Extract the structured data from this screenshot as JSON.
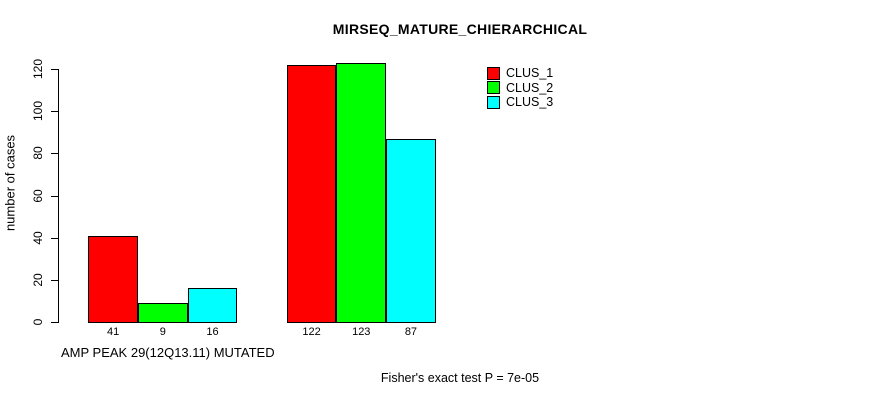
{
  "chart_data": {
    "type": "bar",
    "title": "MIRSEQ_MATURE_CHIERARCHICAL",
    "ylabel": "number of cases",
    "xlabel": "AMP PEAK 29(12Q13.11) MUTATED",
    "groups": [
      "AMP PEAK 29(12Q13.11) MUTATED",
      ""
    ],
    "series": [
      {
        "name": "CLUS_1",
        "color": "#ff0000",
        "values": [
          41,
          122
        ]
      },
      {
        "name": "CLUS_2",
        "color": "#00ff00",
        "values": [
          9,
          123
        ]
      },
      {
        "name": "CLUS_3",
        "color": "#00ffff",
        "values": [
          16,
          87
        ]
      }
    ],
    "bar_labels": [
      [
        41,
        9,
        16
      ],
      [
        122,
        123,
        87
      ]
    ],
    "ylim": [
      0,
      120
    ],
    "yticks": [
      0,
      20,
      40,
      60,
      80,
      100,
      120
    ],
    "grid": false,
    "legend_position": "top-right",
    "legend_entries": [
      {
        "label": "CLUS_1",
        "color": "#ff0000"
      },
      {
        "label": "CLUS_2",
        "color": "#00ff00"
      },
      {
        "label": "CLUS_3",
        "color": "#00ffff"
      }
    ],
    "annotation": "Fisher's exact test P = 7e-05"
  }
}
